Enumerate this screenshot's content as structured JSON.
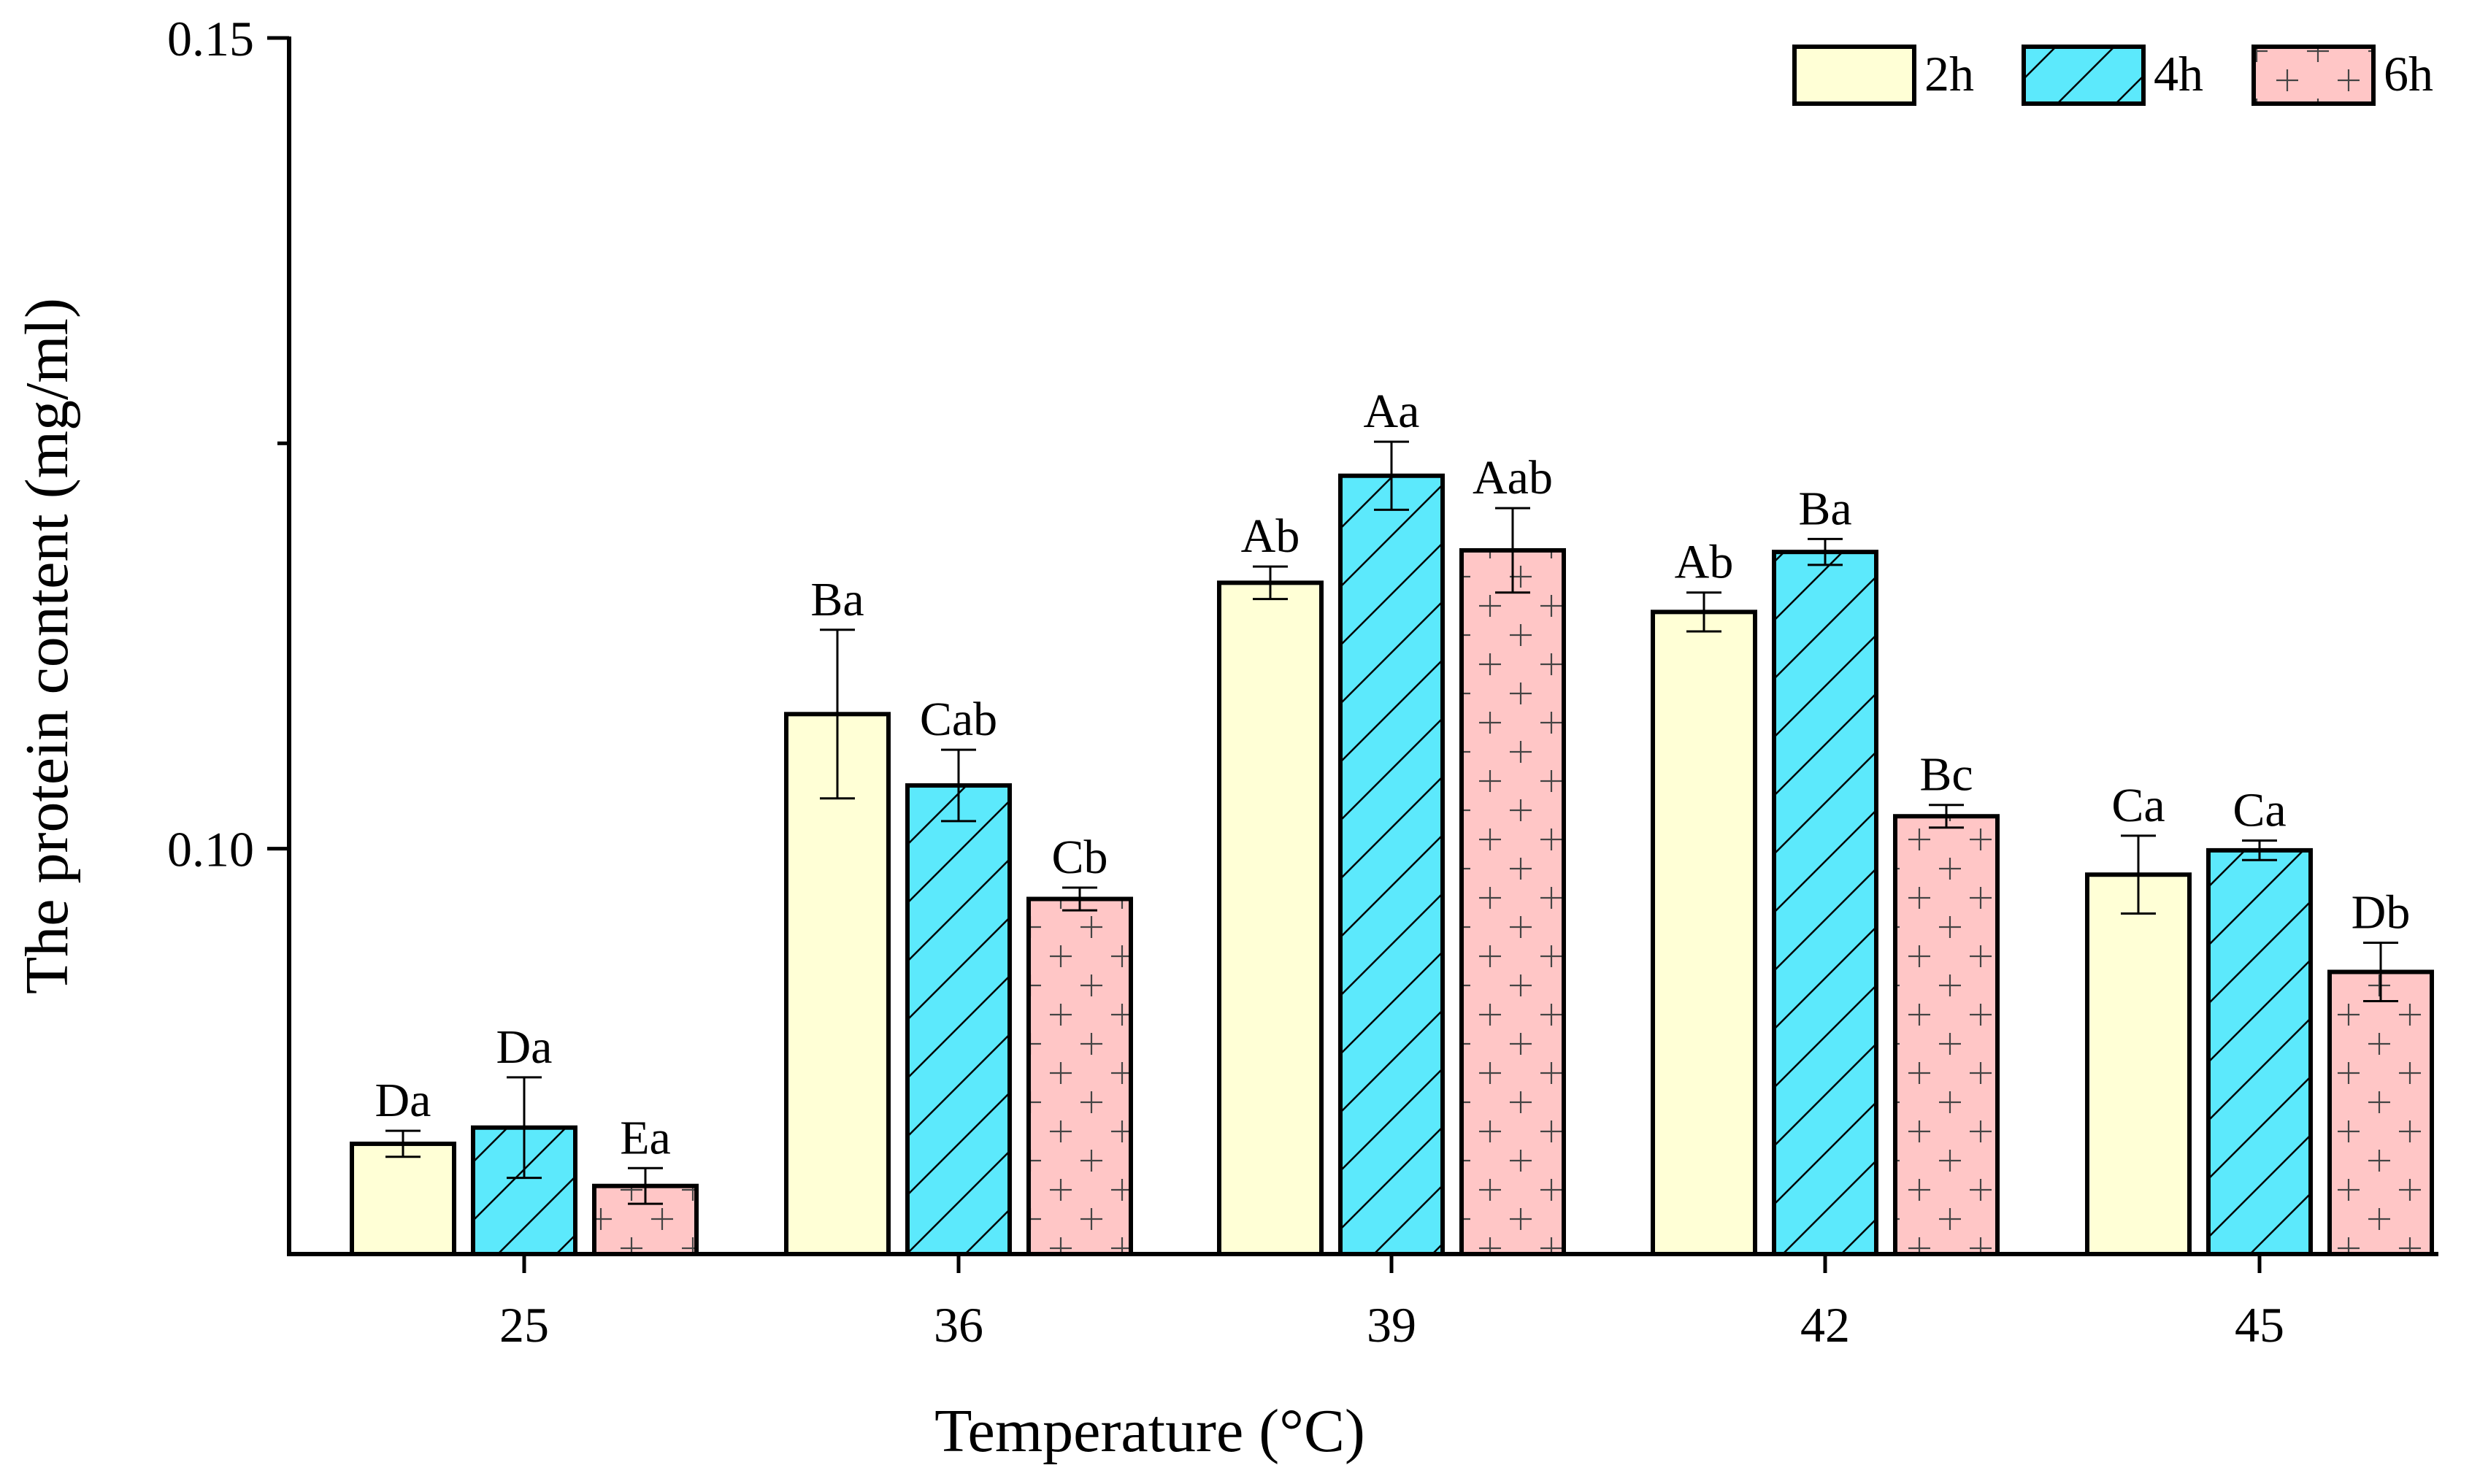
{
  "chart_data": {
    "type": "bar",
    "title": "",
    "xlabel": "Temperature (°C)",
    "ylabel": "The protein content (mg/ml)",
    "categories": [
      "25",
      "36",
      "39",
      "42",
      "45"
    ],
    "ylim": [
      0.075,
      0.15
    ],
    "yticks": [
      0.1,
      0.15
    ],
    "ytick_labels": [
      "0.10",
      "0.15"
    ],
    "minor_ytick": 0.125,
    "legend_position": "top-right",
    "series": [
      {
        "name": "2h",
        "color": "#FFFFD6",
        "pattern": "none",
        "values": [
          0.0818,
          0.1083,
          0.1164,
          0.1146,
          0.0984
        ],
        "errors": [
          0.0008,
          0.0052,
          0.001,
          0.0012,
          0.0024
        ],
        "labels": [
          "Da",
          "Ba",
          "Ab",
          "Ab",
          "Ca"
        ]
      },
      {
        "name": "4h",
        "color": "#5CE9FC",
        "pattern": "diagonal-hatch",
        "values": [
          0.0828,
          0.1039,
          0.123,
          0.1183,
          0.0999
        ],
        "errors": [
          0.0031,
          0.0022,
          0.0021,
          0.0008,
          0.0006
        ],
        "labels": [
          "Da",
          "Cab",
          "Aa",
          "Ba",
          "Ca"
        ]
      },
      {
        "name": "6h",
        "color": "#FFC6C6",
        "pattern": "plus-marks",
        "values": [
          0.0792,
          0.0969,
          0.1184,
          0.102,
          0.0924
        ],
        "errors": [
          0.0011,
          0.0007,
          0.0026,
          0.0007,
          0.0018
        ],
        "labels": [
          "Ea",
          "Cb",
          "Aab",
          "Bc",
          "Db"
        ]
      }
    ]
  }
}
